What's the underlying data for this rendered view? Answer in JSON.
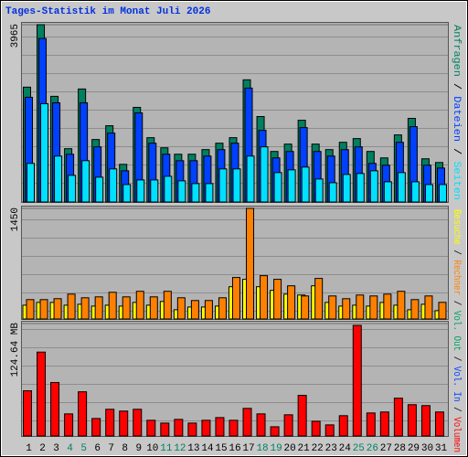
{
  "chart_data": [
    {
      "type": "bar",
      "title": "Tages-Statistik im Monat Juli 2026",
      "ylim": [
        0,
        3965
      ],
      "yticks": [
        3965
      ],
      "separator": " / ",
      "series": [
        {
          "name": "Anfragen",
          "color": "#008060",
          "values": [
            2568,
            3965,
            2363,
            1192,
            2527,
            1397,
            1705,
            842,
            2116,
            1438,
            1212,
            1068,
            1068,
            1171,
            1315,
            1438,
            2732,
            1911,
            1130,
            1294,
            1828,
            1294,
            1171,
            1335,
            1418,
            1130,
            986,
            1500,
            1870,
            966,
            883
          ]
        },
        {
          "name": "Dateien",
          "color": "#0040ff",
          "values": [
            2342,
            3657,
            2219,
            1068,
            2219,
            1233,
            1541,
            698,
            1993,
            1315,
            1068,
            924,
            924,
            1027,
            1171,
            1315,
            2547,
            1602,
            986,
            1130,
            1664,
            1130,
            1027,
            1171,
            1233,
            863,
            822,
            1335,
            1685,
            822,
            760
          ]
        },
        {
          "name": "Seiten",
          "color": "#00e0ff",
          "values": [
            863,
            2198,
            1027,
            596,
            924,
            555,
            740,
            390,
            493,
            493,
            575,
            473,
            411,
            411,
            740,
            740,
            1027,
            1233,
            657,
            719,
            781,
            514,
            431,
            616,
            637,
            698,
            452,
            657,
            452,
            390,
            390
          ]
        }
      ]
    },
    {
      "type": "bar",
      "ylim": [
        0,
        1450
      ],
      "yticks": [
        1450
      ],
      "separator": " / ",
      "series": [
        {
          "name": "Besuche",
          "color": "#ffff00",
          "values": [
            181,
            217,
            217,
            181,
            193,
            169,
            181,
            169,
            217,
            181,
            230,
            121,
            157,
            157,
            169,
            423,
            520,
            423,
            375,
            326,
            314,
            435,
            217,
            169,
            181,
            169,
            217,
            181,
            121,
            193,
            109
          ]
        },
        {
          "name": "Rechner",
          "color": "#ff8000",
          "values": [
            254,
            254,
            266,
            326,
            278,
            290,
            350,
            290,
            363,
            290,
            363,
            278,
            242,
            242,
            278,
            544,
            1450,
            568,
            520,
            435,
            302,
            532,
            302,
            266,
            314,
            302,
            326,
            363,
            254,
            302,
            218
          ]
        }
      ]
    },
    {
      "type": "bar",
      "ylim": [
        0,
        124.64
      ],
      "yticks": [
        {
          "value": 124.64,
          "label": "124.64 MB"
        }
      ],
      "separator": " / ",
      "categories": [
        "1",
        "2",
        "3",
        "4",
        "5",
        "6",
        "7",
        "8",
        "9",
        "10",
        "11",
        "12",
        "13",
        "14",
        "15",
        "16",
        "17",
        "18",
        "19",
        "20",
        "21",
        "22",
        "23",
        "24",
        "25",
        "26",
        "27",
        "28",
        "29",
        "30",
        "31"
      ],
      "category_colors": [
        "#000000",
        "#000000",
        "#000000",
        "#008060",
        "#008060",
        "#000000",
        "#000000",
        "#000000",
        "#000000",
        "#000000",
        "#008060",
        "#008060",
        "#000000",
        "#000000",
        "#000000",
        "#000000",
        "#000000",
        "#008060",
        "#008060",
        "#000000",
        "#000000",
        "#000000",
        "#000000",
        "#000000",
        "#008060",
        "#008060",
        "#000000",
        "#000000",
        "#000000",
        "#000000",
        "#000000"
      ],
      "extra_legend": [
        {
          "name": "Vol. Out",
          "color": "#00a060"
        },
        {
          "name": "Vol. In",
          "color": "#0040ff"
        }
      ],
      "series": [
        {
          "name": "Volumen",
          "color": "#ff0000",
          "values": [
            50.1,
            93.0,
            59.3,
            24.5,
            49.0,
            19.4,
            29.6,
            27.6,
            29.6,
            17.4,
            14.3,
            18.4,
            14.3,
            17.4,
            20.4,
            17.4,
            30.6,
            24.5,
            10.2,
            23.5,
            45.0,
            16.3,
            12.3,
            22.5,
            122.6,
            25.5,
            26.6,
            41.9,
            34.7,
            33.7,
            26.6
          ]
        }
      ]
    }
  ]
}
